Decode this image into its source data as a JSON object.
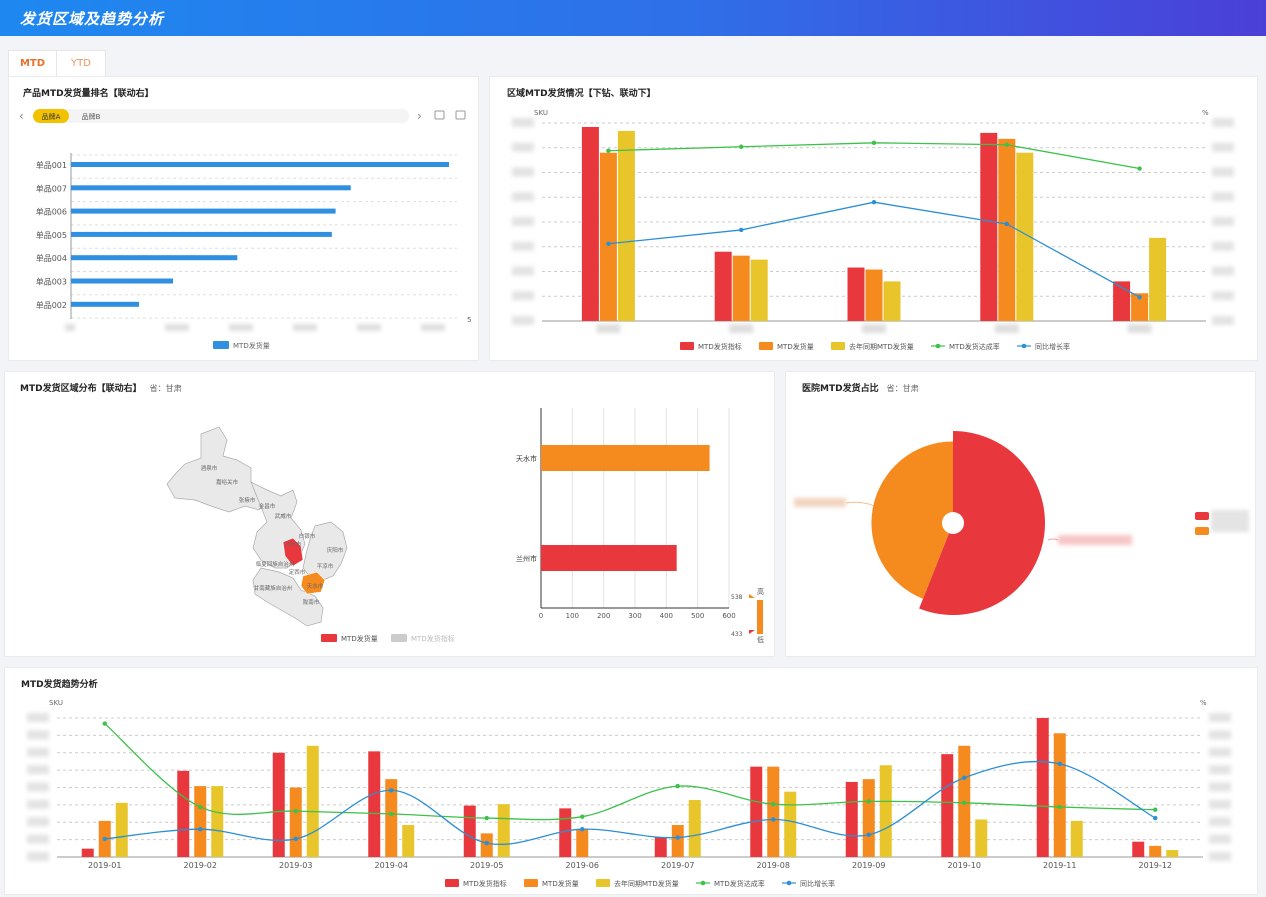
{
  "header": {
    "title": "发货区域及趋势分析"
  },
  "tabs": [
    {
      "label": "MTD"
    },
    {
      "label": "YTD"
    }
  ],
  "panel_rank": {
    "title": "产品MTD发货量排名【联动右】",
    "chips": [
      "品牌A",
      "品牌B"
    ],
    "legend": "MTD发货量",
    "chart_data": {
      "type": "bar",
      "orientation": "horizontal",
      "categories": [
        "单品001",
        "单品007",
        "单品006",
        "单品005",
        "单品004",
        "单品003",
        "单品002"
      ],
      "values": [
        5,
        3.7,
        3.5,
        3.45,
        2.2,
        1.35,
        0.9
      ],
      "xlim": [
        0,
        5
      ],
      "x_end_label": "5",
      "colors": {
        "bar": "#2f8fe0"
      }
    }
  },
  "panel_region": {
    "title": "区域MTD发货情况【下钻、联动下】",
    "y_left_label": "SKU",
    "y_right_label": "%",
    "chart_data": {
      "type": "bar",
      "categories": [
        "区域1",
        "区域2",
        "区域3",
        "区域4",
        "区域5"
      ],
      "ylim": [
        0,
        100
      ],
      "y2lim": [
        0,
        100
      ],
      "series": [
        {
          "name": "MTD发货指标",
          "kind": "bar",
          "color": "#e8383d",
          "values": [
            98,
            35,
            27,
            95,
            20
          ]
        },
        {
          "name": "MTD发货量",
          "kind": "bar",
          "color": "#f58a1f",
          "values": [
            85,
            33,
            26,
            92,
            14
          ]
        },
        {
          "name": "去年同期MTD发货量",
          "kind": "bar",
          "color": "#e8c52a",
          "values": [
            96,
            31,
            20,
            85,
            42
          ]
        },
        {
          "name": "MTD发货达成率",
          "kind": "line",
          "color": "#3cc24a",
          "values": [
            86,
            88,
            90,
            89,
            77
          ]
        },
        {
          "name": "同比增长率",
          "kind": "line",
          "color": "#2b8fd6",
          "values": [
            39,
            46,
            60,
            49,
            12
          ]
        }
      ]
    }
  },
  "panel_map": {
    "title": "MTD发货区域分布【联动右】",
    "subtitle": "省：甘肃",
    "legend": [
      {
        "label": "MTD发货量"
      },
      {
        "label": "MTD发货指标"
      }
    ],
    "chart_data": {
      "type": "bar",
      "orientation": "horizontal",
      "categories": [
        "天水市",
        "兰州市"
      ],
      "values": [
        538,
        433
      ],
      "xlim": [
        0,
        600
      ],
      "xticks": [
        "0",
        "100",
        "200",
        "300",
        "400",
        "500",
        "600"
      ],
      "colors": [
        "#f58a1f",
        "#e8383d"
      ]
    },
    "visualmap": {
      "high_label": "高",
      "low_label": "低",
      "max": "538",
      "min": "433"
    },
    "cities": [
      "酒泉市",
      "嘉峪关市",
      "张掖市",
      "金昌市",
      "武威市",
      "白银市",
      "兰州市",
      "庆阳市",
      "平凉市",
      "定西市",
      "天水市",
      "陇南市",
      "临夏回族自治州",
      "甘南藏族自治州"
    ]
  },
  "panel_pie": {
    "title": "医院MTD发货占比",
    "subtitle": "省：甘肃",
    "chart_data": {
      "type": "pie",
      "style": "rose",
      "slices": [
        {
          "name": "医院A",
          "value": 56,
          "color": "#e8383d"
        },
        {
          "name": "医院B",
          "value": 44,
          "color": "#f58a1f"
        }
      ]
    }
  },
  "panel_trend": {
    "title": "MTD发货趋势分析",
    "y_left_label": "SKU",
    "y_right_label": "%",
    "chart_data": {
      "type": "bar",
      "categories": [
        "2019-01",
        "2019-02",
        "2019-03",
        "2019-04",
        "2019-05",
        "2019-06",
        "2019-07",
        "2019-08",
        "2019-09",
        "2019-10",
        "2019-11",
        "2019-12"
      ],
      "ylim": [
        0,
        100
      ],
      "y2lim": [
        0,
        100
      ],
      "series": [
        {
          "name": "MTD发货指标",
          "kind": "bar",
          "color": "#e8383d",
          "values": [
            6,
            62,
            75,
            76,
            37,
            35,
            14,
            65,
            54,
            74,
            100,
            11
          ]
        },
        {
          "name": "MTD发货量",
          "kind": "bar",
          "color": "#f58a1f",
          "values": [
            26,
            51,
            50,
            56,
            17,
            20,
            23,
            65,
            56,
            80,
            89,
            8
          ]
        },
        {
          "name": "去年同期MTD发货量",
          "kind": "bar",
          "color": "#e8c52a",
          "values": [
            39,
            51,
            80,
            23,
            38,
            0,
            41,
            47,
            66,
            27,
            26,
            5
          ]
        },
        {
          "name": "MTD发货达成率",
          "kind": "line",
          "color": "#3cc24a",
          "values": [
            96,
            36,
            33,
            31,
            28,
            29,
            51,
            38,
            40,
            39,
            36,
            34
          ]
        },
        {
          "name": "同比增长率",
          "kind": "line",
          "color": "#2b8fd6",
          "values": [
            13,
            20,
            13,
            48,
            10,
            20,
            14,
            27,
            16,
            57,
            67,
            28
          ]
        }
      ]
    }
  }
}
